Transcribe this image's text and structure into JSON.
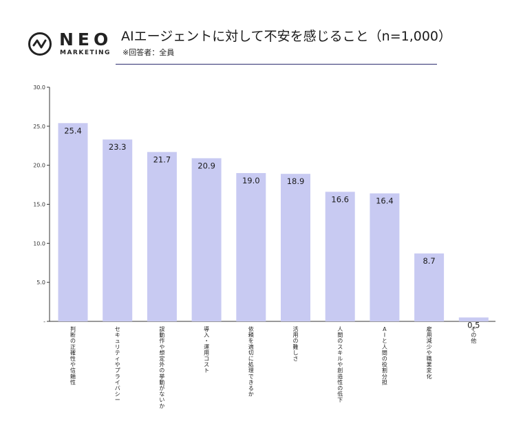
{
  "logo": {
    "wordmark": "NEO",
    "sub": "MARKETING",
    "mark_icon": "circle-zigzag-icon"
  },
  "header": {
    "title": "AIエージェントに対して不安を感じること（n=1,000）",
    "subtitle": "※回答者：全員"
  },
  "colors": {
    "bar": "#c8caf2",
    "rule": "#2b2b6e",
    "axis": "#333333"
  },
  "chart_data": {
    "type": "bar",
    "title": "",
    "xlabel": "",
    "ylabel": "",
    "ylim": [
      0,
      30
    ],
    "yticks": [
      {
        "value": 0,
        "label": "-"
      },
      {
        "value": 5,
        "label": "5.0"
      },
      {
        "value": 10,
        "label": "10.0"
      },
      {
        "value": 15,
        "label": "15.0"
      },
      {
        "value": 20,
        "label": "20.0"
      },
      {
        "value": 25,
        "label": "25.0"
      },
      {
        "value": 30,
        "label": "30.0"
      }
    ],
    "grid": false,
    "categories": [
      "判断の正確性や信頼性",
      "セキュリティやプライバシー",
      "誤動作や想定外の挙動がないか",
      "導入・運用コスト",
      "依頼を適切に処理できるか",
      "活用の難しさ",
      "人間のスキルや創造性の低下",
      "AIと人間の役割分担",
      "雇用減少や職業変化",
      "その他"
    ],
    "values": [
      25.4,
      23.3,
      21.7,
      20.9,
      19.0,
      18.9,
      16.6,
      16.4,
      8.7,
      0.5
    ],
    "value_labels": [
      "25.4",
      "23.3",
      "21.7",
      "20.9",
      "19.0",
      "18.9",
      "16.6",
      "16.4",
      "8.7",
      "0.5"
    ]
  }
}
